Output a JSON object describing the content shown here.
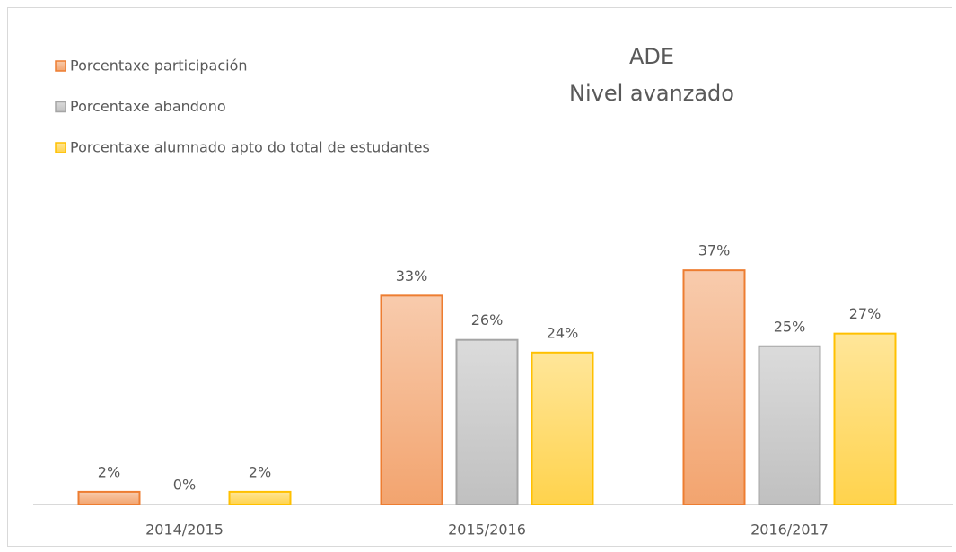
{
  "chart_data": {
    "type": "bar",
    "title": "ADE",
    "subtitle": "Nivel avanzado",
    "categories": [
      "2014/2015",
      "2015/2016",
      "2016/2017"
    ],
    "series": [
      {
        "name": "Porcentaxe participación",
        "color": "#ed7d31",
        "values": [
          2,
          33,
          37
        ],
        "value_labels": [
          "2%",
          "33%",
          "37%"
        ]
      },
      {
        "name": "Porcentaxe abandono",
        "color": "#a5a5a5",
        "values": [
          0,
          26,
          25
        ],
        "value_labels": [
          "0%",
          "26%",
          "25%"
        ]
      },
      {
        "name": "Porcentaxe alumnado apto do total de estudantes",
        "color": "#ffc000",
        "values": [
          2,
          24,
          27
        ],
        "value_labels": [
          "2%",
          "24%",
          "27%"
        ]
      }
    ],
    "legend": "top-left"
  }
}
